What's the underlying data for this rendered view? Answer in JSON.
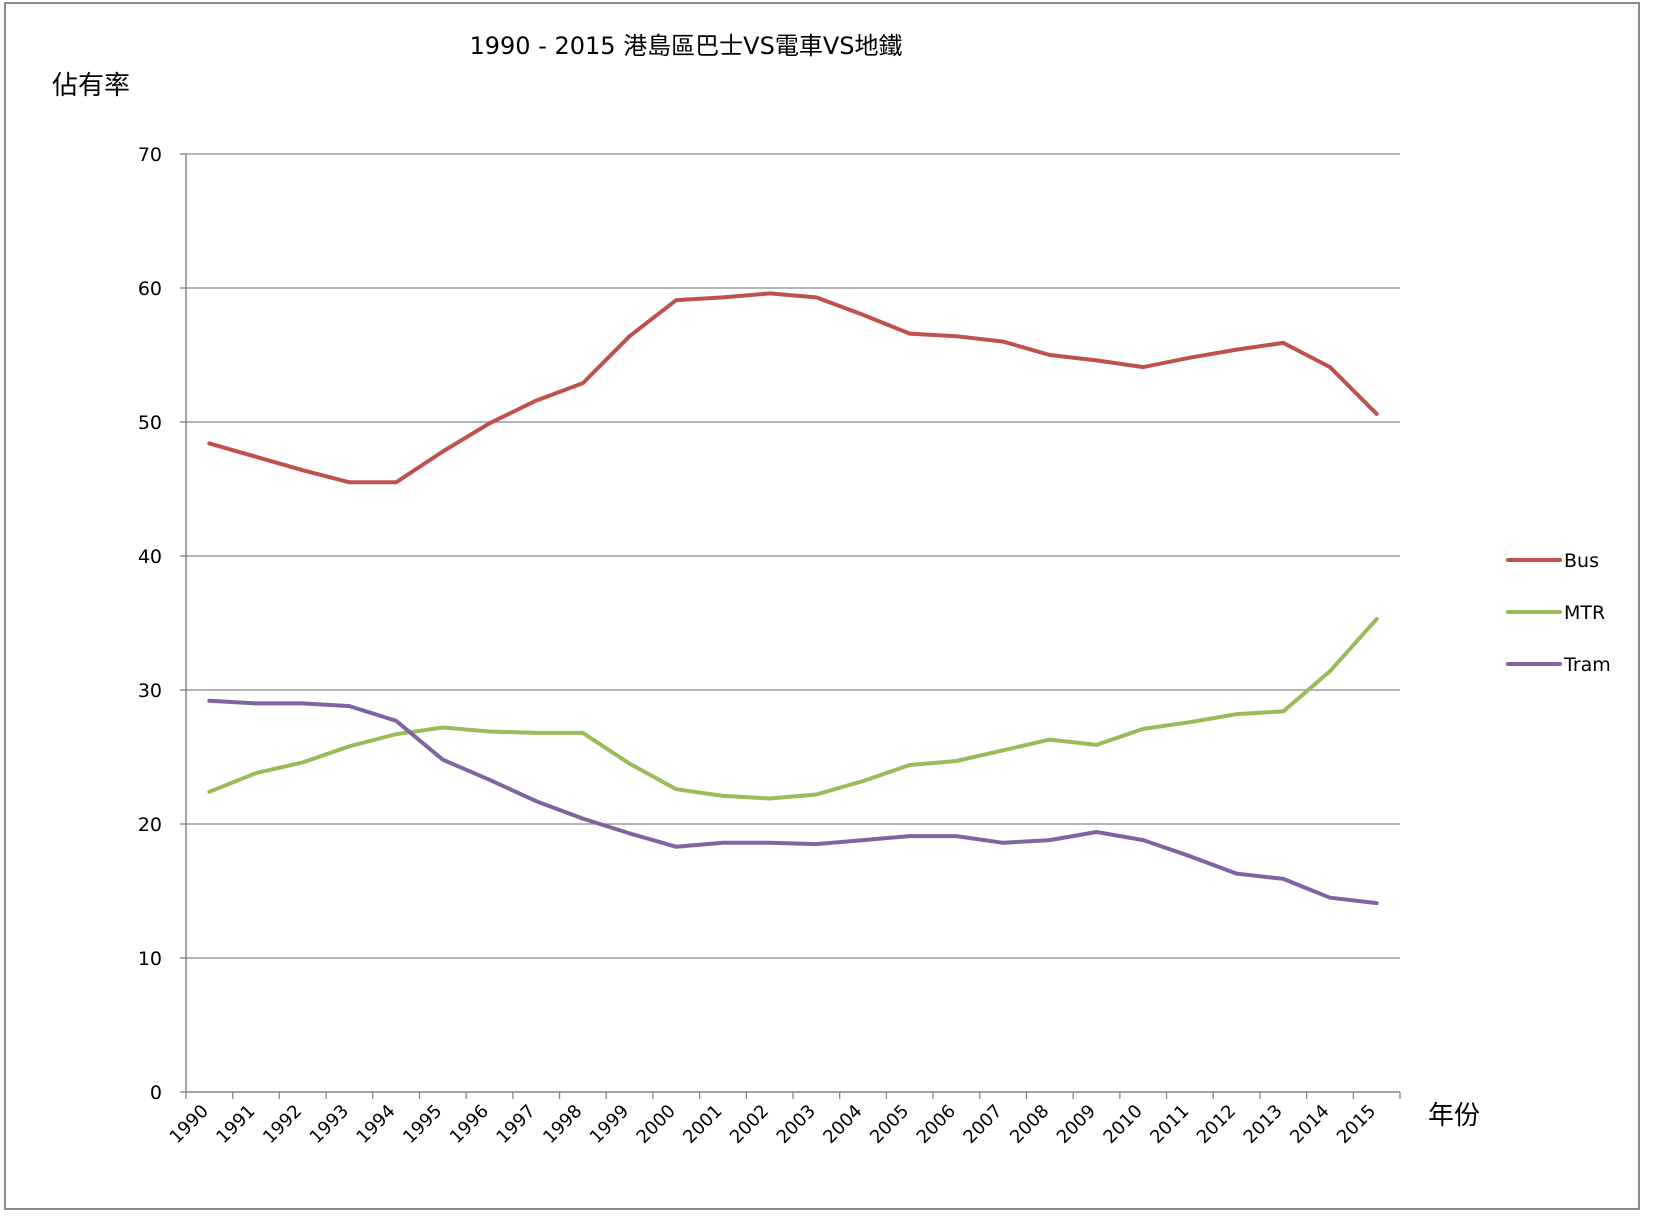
{
  "chart_data": {
    "type": "line",
    "title": "1990 - 2015 港島區巴士VS電車VS地鐵",
    "ylabel": "佔有率",
    "xlabel": "年份",
    "ylim": [
      0,
      70
    ],
    "yticks": [
      0,
      10,
      20,
      30,
      40,
      50,
      60,
      70
    ],
    "grid": true,
    "legend_position": "right",
    "categories": [
      "1990",
      "1991",
      "1992",
      "1993",
      "1994",
      "1995",
      "1996",
      "1997",
      "1998",
      "1999",
      "2000",
      "2001",
      "2002",
      "2003",
      "2004",
      "2005",
      "2006",
      "2007",
      "2008",
      "2009",
      "2010",
      "2011",
      "2012",
      "2013",
      "2014",
      "2015"
    ],
    "series": [
      {
        "name": "Bus",
        "color": "#c0504d",
        "values": [
          48.4,
          47.4,
          46.4,
          45.5,
          45.5,
          47.8,
          49.9,
          51.6,
          52.9,
          56.4,
          59.1,
          59.3,
          59.6,
          59.3,
          58.0,
          56.6,
          56.4,
          56.0,
          55.0,
          54.6,
          54.1,
          54.8,
          55.4,
          55.9,
          54.1,
          50.6
        ]
      },
      {
        "name": "MTR",
        "color": "#9bbb59",
        "values": [
          22.4,
          23.8,
          24.6,
          25.8,
          26.7,
          27.2,
          26.9,
          26.8,
          26.8,
          24.5,
          22.6,
          22.1,
          21.9,
          22.2,
          23.2,
          24.4,
          24.7,
          25.5,
          26.3,
          25.9,
          27.1,
          27.6,
          28.2,
          28.4,
          31.4,
          35.3
        ]
      },
      {
        "name": "Tram",
        "color": "#8064a2",
        "values": [
          29.2,
          29.0,
          29.0,
          28.8,
          27.7,
          24.8,
          23.3,
          21.7,
          20.4,
          19.3,
          18.3,
          18.6,
          18.6,
          18.5,
          18.8,
          19.1,
          19.1,
          18.6,
          18.8,
          19.4,
          18.8,
          17.6,
          16.3,
          15.9,
          14.5,
          14.1
        ]
      }
    ]
  }
}
